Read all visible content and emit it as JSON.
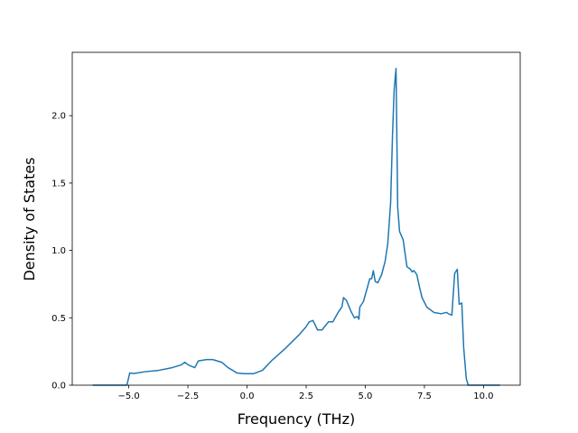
{
  "chart_data": {
    "type": "line",
    "x_label": "Frequency (THz)",
    "y_label": "Density of States",
    "x": [
      -6.53,
      -5.08,
      -4.96,
      -4.77,
      -4.31,
      -3.74,
      -3.17,
      -2.79,
      -2.63,
      -2.48,
      -2.21,
      -2.06,
      -1.72,
      -1.45,
      -1.07,
      -0.8,
      -0.42,
      -0.11,
      0.27,
      0.65,
      1.03,
      1.6,
      2.18,
      2.48,
      2.63,
      2.79,
      2.98,
      3.17,
      3.44,
      3.63,
      3.85,
      4.01,
      4.08,
      4.2,
      4.39,
      4.54,
      4.66,
      4.73,
      4.77,
      4.92,
      5.08,
      5.19,
      5.27,
      5.34,
      5.42,
      5.53,
      5.69,
      5.84,
      5.95,
      6.07,
      6.15,
      6.22,
      6.3,
      6.37,
      6.45,
      6.6,
      6.76,
      6.83,
      6.91,
      6.98,
      7.06,
      7.18,
      7.29,
      7.4,
      7.6,
      7.9,
      8.21,
      8.44,
      8.51,
      8.66,
      8.78,
      8.89,
      8.97,
      9.08,
      9.16,
      9.27,
      9.35,
      10.69
    ],
    "values": [
      0,
      0,
      0.09,
      0.087,
      0.1,
      0.11,
      0.13,
      0.15,
      0.17,
      0.15,
      0.13,
      0.18,
      0.19,
      0.19,
      0.17,
      0.13,
      0.09,
      0.085,
      0.085,
      0.11,
      0.18,
      0.27,
      0.37,
      0.43,
      0.47,
      0.48,
      0.41,
      0.41,
      0.47,
      0.47,
      0.54,
      0.58,
      0.65,
      0.63,
      0.55,
      0.5,
      0.51,
      0.49,
      0.58,
      0.62,
      0.72,
      0.79,
      0.79,
      0.85,
      0.77,
      0.76,
      0.82,
      0.92,
      1.05,
      1.35,
      1.85,
      2.19,
      2.35,
      1.32,
      1.14,
      1.08,
      0.88,
      0.87,
      0.86,
      0.84,
      0.85,
      0.82,
      0.73,
      0.65,
      0.58,
      0.54,
      0.53,
      0.54,
      0.53,
      0.52,
      0.83,
      0.86,
      0.6,
      0.61,
      0.28,
      0.05,
      0,
      0
    ],
    "color": "#1f77b4",
    "xlim": [
      -7.39,
      11.55
    ],
    "ylim": [
      0,
      2.47
    ],
    "xticks": [
      {
        "value": -5,
        "label": "−5.0"
      },
      {
        "value": -2.5,
        "label": "−2.5"
      },
      {
        "value": 0,
        "label": "0.0"
      },
      2.5,
      {
        "value": 5,
        "label": "5.0"
      },
      7.5,
      {
        "value": 10,
        "label": "10.0"
      }
    ],
    "yticks": [
      {
        "value": 0,
        "label": "0.0"
      },
      0.5,
      {
        "value": 1,
        "label": "1.0"
      },
      1.5,
      {
        "value": 2,
        "label": "2.0"
      }
    ]
  }
}
